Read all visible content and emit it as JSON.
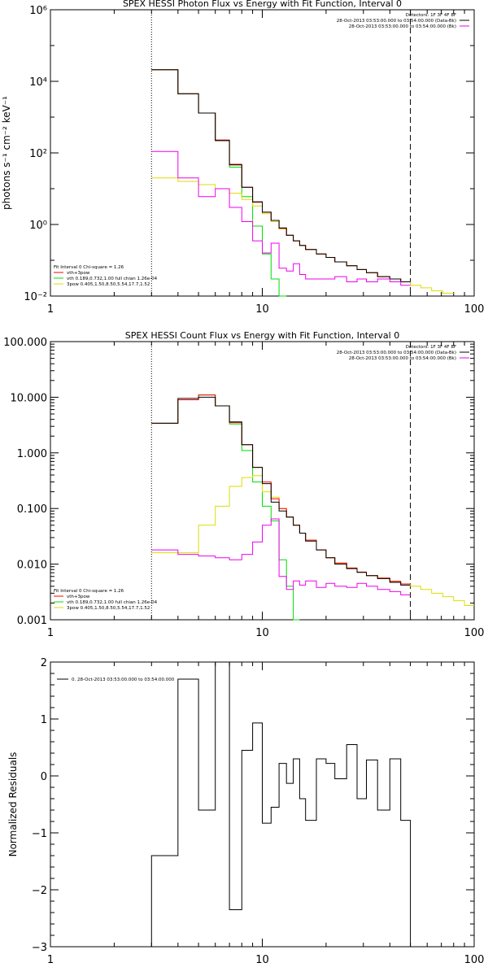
{
  "colors": {
    "data": "#000000",
    "total": "#ff0000",
    "thermal": "#00dd00",
    "powerlaw": "#dddd00",
    "background": "#ee00ee"
  },
  "chart_data": [
    {
      "type": "line",
      "step": true,
      "title": "SPEX HESSI Photon Flux vs Energy with Fit Function, Interval 0",
      "xlabel": "",
      "ylabel": "photons s⁻¹ cm⁻² keV⁻¹",
      "xscale": "log",
      "yscale": "log",
      "xlim": [
        1,
        100
      ],
      "ylim": [
        0.01,
        1000000
      ],
      "xticks": [
        1,
        10,
        100
      ],
      "xtick_labels": [
        "1",
        "10",
        "100"
      ],
      "yticks": [
        0.01,
        1,
        100,
        10000,
        1000000
      ],
      "ytick_labels": [
        "10⁻²",
        "10⁰",
        "10²",
        "10⁴",
        "10⁶"
      ],
      "vlines": [
        {
          "x": 3,
          "style": "dotted"
        },
        {
          "x": 50,
          "style": "dashed"
        }
      ],
      "legend_top": {
        "title": "Detectors: 1F 3F 4F 8F",
        "entries": [
          {
            "label": "28-Oct-2013 03:53:00.000 to 03:54:00.000 (Data-Bk)",
            "color": "data"
          },
          {
            "label": "28-Oct-2013 03:53:00.000 to 03:54:00.000 (Bk)",
            "color": "background"
          }
        ]
      },
      "legend_bottom": {
        "header": "Fit Interval 0   Chi-square = 1.26",
        "entries": [
          {
            "label": "vth+3pow",
            "color": "total"
          },
          {
            "label": "vth 0.189,0.732,1.00  full chian 1.26e-04",
            "color": "thermal"
          },
          {
            "label": "3pow 0.405,1.50,8.50,5.54,17.7,1.52",
            "color": "powerlaw"
          }
        ]
      },
      "edges": [
        3,
        4,
        5,
        6,
        7,
        8,
        9,
        10,
        11,
        12,
        13,
        14,
        15,
        16,
        18,
        20,
        22,
        25,
        28,
        31,
        35,
        40,
        45,
        50,
        56,
        63,
        71,
        80
      ],
      "series": [
        {
          "name": "vth",
          "color": "thermal",
          "values": [
            21000,
            4500,
            1300,
            220,
            40,
            6,
            0.9,
            0.15,
            0.03,
            0.01
          ]
        },
        {
          "name": "3pow",
          "color": "powerlaw",
          "values": [
            20,
            16,
            13,
            10,
            7.5,
            5,
            3.3,
            2.0,
            1.2,
            0.75,
            0.5,
            0.35,
            0.26,
            0.2,
            0.15,
            0.12,
            0.09,
            0.07,
            0.055,
            0.045,
            0.035,
            0.03,
            0.025,
            0.02,
            0.017,
            0.014,
            0.012
          ]
        },
        {
          "name": "vth+3pow",
          "color": "total",
          "values": [
            21000,
            4500,
            1300,
            230,
            48,
            11,
            4.2,
            2.2,
            1.3,
            0.78,
            0.5,
            0.35,
            0.26,
            0.2,
            0.15,
            0.12,
            0.09,
            0.07,
            0.055,
            0.045,
            0.035,
            0.03,
            0.025
          ]
        },
        {
          "name": "Data-Bk",
          "color": "data",
          "values": [
            21000,
            4500,
            1300,
            220,
            46,
            11,
            4.3,
            2.2,
            1.3,
            0.8,
            0.5,
            0.35,
            0.26,
            0.2,
            0.15,
            0.12,
            0.09,
            0.07,
            0.055,
            0.045,
            0.035,
            0.03,
            0.025
          ]
        },
        {
          "name": "Bk",
          "color": "background",
          "values": [
            110,
            20,
            6,
            10,
            3,
            1.2,
            0.35,
            0.16,
            0.3,
            0.06,
            0.05,
            0.08,
            0.04,
            0.03,
            0.03,
            0.03,
            0.035,
            0.025,
            0.03,
            0.025,
            0.03,
            0.025,
            0.02
          ]
        }
      ]
    },
    {
      "type": "line",
      "step": true,
      "title": "SPEX HESSI Count Flux vs Energy with Fit Function, Interval 0",
      "xlabel": "",
      "ylabel": "",
      "xscale": "log",
      "yscale": "log",
      "xlim": [
        1,
        100
      ],
      "ylim": [
        0.001,
        100
      ],
      "xticks": [
        1,
        10,
        100
      ],
      "xtick_labels": [
        "1",
        "10",
        "100"
      ],
      "yticks": [
        0.001,
        0.01,
        0.1,
        1,
        10,
        100
      ],
      "ytick_labels": [
        "0.001",
        "0.010",
        "0.100",
        "1.000",
        "10.000",
        "100.000"
      ],
      "vlines": [
        {
          "x": 3,
          "style": "dotted"
        },
        {
          "x": 50,
          "style": "dashed"
        }
      ],
      "legend_top": {
        "title": "Detectors: 1F 3F 4F 8F",
        "entries": [
          {
            "label": "28-Oct-2013 03:53:00.000 to 03:54:00.000 (Data-Bk)",
            "color": "data"
          },
          {
            "label": "28-Oct-2013 03:53:00.000 to 03:54:00.000 (Bk)",
            "color": "background"
          }
        ]
      },
      "legend_bottom": {
        "header": "Fit Interval 0   Chi-square = 1.26",
        "entries": [
          {
            "label": "vth+3pow",
            "color": "total"
          },
          {
            "label": "vth 0.189,0.732,1.00  full chian 1.26e-04",
            "color": "thermal"
          },
          {
            "label": "3pow 0.405,1.50,8.50,5.54,17.7,1.52",
            "color": "powerlaw"
          }
        ]
      },
      "edges": [
        3,
        4,
        5,
        6,
        7,
        8,
        9,
        10,
        11,
        12,
        13,
        14,
        15,
        16,
        18,
        20,
        22,
        25,
        28,
        31,
        35,
        40,
        45,
        50,
        56,
        63,
        71,
        80,
        90,
        100
      ],
      "series": [
        {
          "name": "vth",
          "color": "thermal",
          "values": [
            3.4,
            9,
            11,
            7,
            3.3,
            1.1,
            0.3,
            0.11,
            0.06,
            0.012,
            0.004,
            0.001
          ]
        },
        {
          "name": "3pow",
          "color": "powerlaw",
          "values": [
            0.016,
            0.016,
            0.05,
            0.11,
            0.25,
            0.36,
            0.39,
            0.2,
            0.16,
            0.1,
            0.07,
            0.05,
            0.036,
            0.027,
            0.018,
            0.013,
            0.0105,
            0.0085,
            0.0072,
            0.0062,
            0.0056,
            0.0049,
            0.0044,
            0.004,
            0.0035,
            0.003,
            0.0026,
            0.0022,
            0.0018
          ]
        },
        {
          "name": "vth+3pow",
          "color": "total",
          "values": [
            3.4,
            9,
            11,
            7,
            3.5,
            1.4,
            0.55,
            0.3,
            0.15,
            0.1,
            0.07,
            0.05,
            0.036,
            0.027,
            0.018,
            0.013,
            0.0105,
            0.0085,
            0.0072,
            0.0062,
            0.0056,
            0.0049,
            0.0044
          ]
        },
        {
          "name": "Data-Bk",
          "color": "data",
          "values": [
            3.4,
            9.5,
            10,
            7,
            3.6,
            1.4,
            0.55,
            0.28,
            0.13,
            0.09,
            0.07,
            0.05,
            0.036,
            0.026,
            0.018,
            0.013,
            0.01,
            0.0083,
            0.0071,
            0.0062,
            0.0055,
            0.0047,
            0.0042
          ]
        },
        {
          "name": "Bk",
          "color": "background",
          "values": [
            0.018,
            0.015,
            0.014,
            0.013,
            0.012,
            0.015,
            0.025,
            0.05,
            0.065,
            0.006,
            0.0035,
            0.005,
            0.0042,
            0.005,
            0.0038,
            0.0045,
            0.004,
            0.0038,
            0.0045,
            0.004,
            0.0035,
            0.0032,
            0.0028
          ]
        }
      ]
    },
    {
      "type": "line",
      "step": true,
      "title": "",
      "xlabel": "",
      "ylabel": "Normalized Residuals",
      "xscale": "log",
      "yscale": "linear",
      "xlim": [
        1,
        100
      ],
      "ylim": [
        -3,
        2
      ],
      "xticks": [
        1,
        10,
        100
      ],
      "xtick_labels": [
        "1",
        "10",
        "100"
      ],
      "yticks": [
        -3,
        -2,
        -1,
        0,
        1,
        2
      ],
      "ytick_labels": [
        "−3",
        "−2",
        "−1",
        "0",
        "1",
        "2"
      ],
      "legend": {
        "entries": [
          {
            "label": "0. 28-Oct-2013 03:53:00.000 to 03:54:00.000",
            "color": "data"
          }
        ]
      },
      "edges": [
        3,
        4,
        5,
        6,
        7,
        8,
        9,
        10,
        11,
        12,
        13,
        14,
        15,
        16,
        18,
        20,
        22,
        25,
        28,
        31,
        35,
        40,
        45,
        50
      ],
      "series": [
        {
          "name": "0. 28-Oct-2013 03:53:00.000 to 03:54:00.000",
          "color": "data",
          "values": [
            -1.4,
            1.7,
            -0.6,
            2.0,
            -2.35,
            0.45,
            0.93,
            -0.83,
            -0.55,
            0.22,
            -0.13,
            0.3,
            -0.4,
            -0.78,
            0.3,
            0.22,
            -0.05,
            0.55,
            -0.4,
            0.28,
            -0.6,
            0.3,
            -0.78
          ]
        }
      ]
    }
  ]
}
